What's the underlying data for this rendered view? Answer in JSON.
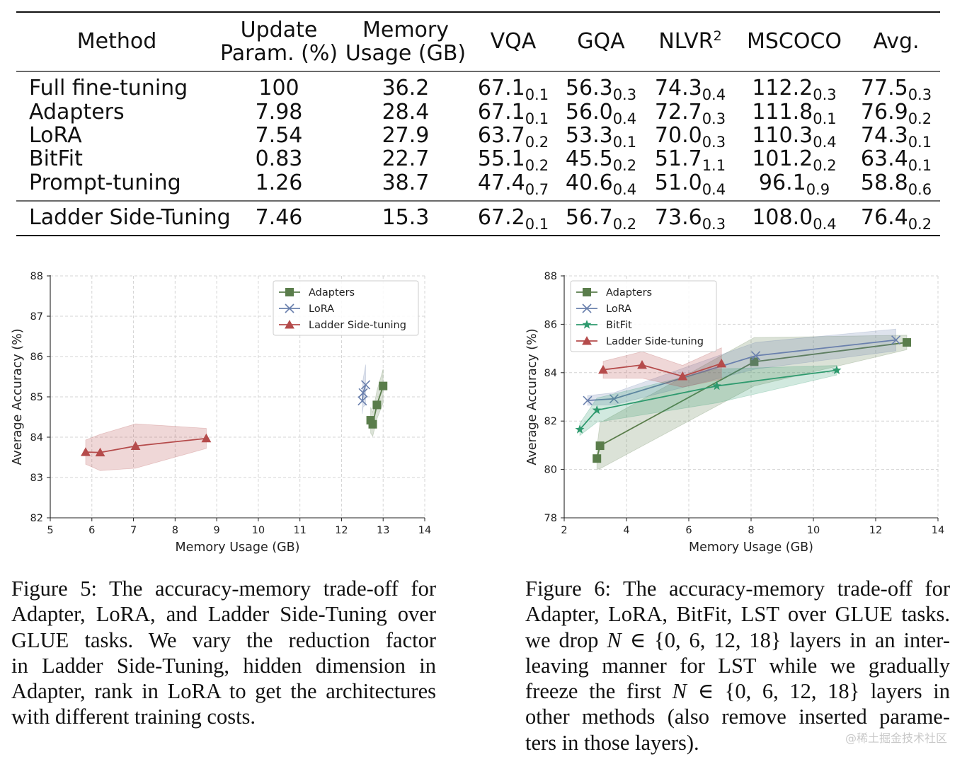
{
  "table": {
    "headers": [
      {
        "lines": [
          "Method"
        ]
      },
      {
        "lines": [
          "Update",
          "Param. (%)"
        ]
      },
      {
        "lines": [
          "Memory",
          "Usage (GB)"
        ]
      },
      {
        "lines": [
          "VQA"
        ]
      },
      {
        "lines": [
          "GQA"
        ]
      },
      {
        "lines": [
          "NLVR"
        ],
        "sup": "2"
      },
      {
        "lines": [
          "MSCOCO"
        ]
      },
      {
        "lines": [
          "Avg."
        ]
      }
    ],
    "rows": [
      {
        "method": "Full fine-tuning",
        "param": "100",
        "memory": "36.2",
        "scores": [
          [
            "67.1",
            "0.1"
          ],
          [
            "56.3",
            "0.3"
          ],
          [
            "74.3",
            "0.4"
          ],
          [
            "112.2",
            "0.3"
          ],
          [
            "77.5",
            "0.3"
          ]
        ]
      },
      {
        "method": "Adapters",
        "param": "7.98",
        "memory": "28.4",
        "scores": [
          [
            "67.1",
            "0.1"
          ],
          [
            "56.0",
            "0.4"
          ],
          [
            "72.7",
            "0.3"
          ],
          [
            "111.8",
            "0.1"
          ],
          [
            "76.9",
            "0.2"
          ]
        ]
      },
      {
        "method": "LoRA",
        "param": "7.54",
        "memory": "27.9",
        "scores": [
          [
            "63.7",
            "0.2"
          ],
          [
            "53.3",
            "0.1"
          ],
          [
            "70.0",
            "0.3"
          ],
          [
            "110.3",
            "0.4"
          ],
          [
            "74.3",
            "0.1"
          ]
        ]
      },
      {
        "method": "BitFit",
        "param": "0.83",
        "memory": "22.7",
        "scores": [
          [
            "55.1",
            "0.2"
          ],
          [
            "45.5",
            "0.2"
          ],
          [
            "51.7",
            "1.1"
          ],
          [
            "101.2",
            "0.2"
          ],
          [
            "63.4",
            "0.1"
          ]
        ]
      },
      {
        "method": "Prompt-tuning",
        "param": "1.26",
        "memory": "38.7",
        "scores": [
          [
            "47.4",
            "0.7"
          ],
          [
            "40.6",
            "0.4"
          ],
          [
            "51.0",
            "0.4"
          ],
          [
            "96.1",
            "0.9"
          ],
          [
            "58.8",
            "0.6"
          ]
        ]
      }
    ],
    "final_row": {
      "method": "Ladder Side-Tuning",
      "param": "7.46",
      "memory": "15.3",
      "scores": [
        [
          "67.2",
          "0.1"
        ],
        [
          "56.7",
          "0.2"
        ],
        [
          "73.6",
          "0.3"
        ],
        [
          "108.0",
          "0.4"
        ],
        [
          "76.4",
          "0.2"
        ]
      ]
    }
  },
  "chart_data": [
    {
      "type": "line",
      "xlabel": "Memory Usage (GB)",
      "ylabel": "Average Accuracy (%)",
      "xlim": [
        5,
        14
      ],
      "ylim": [
        82,
        88
      ],
      "xticks": [
        5,
        6,
        7,
        8,
        9,
        10,
        11,
        12,
        13,
        14
      ],
      "yticks": [
        82,
        83,
        84,
        85,
        86,
        87,
        88
      ],
      "grid": true,
      "legend_position": "top-right",
      "series": [
        {
          "name": "Adapters",
          "color": "#5a7d4b",
          "marker": "square",
          "points": [
            [
              12.7,
              84.42
            ],
            [
              12.75,
              84.32
            ],
            [
              12.85,
              84.8
            ],
            [
              13.0,
              85.27
            ]
          ],
          "band": [
            0.32,
            0.3,
            0.35,
            0.42
          ]
        },
        {
          "name": "LoRA",
          "color": "#6a80ad",
          "marker": "x",
          "points": [
            [
              12.5,
              84.9
            ],
            [
              12.52,
              85.1
            ],
            [
              12.58,
              85.3
            ]
          ],
          "band": [
            0.32,
            0.35,
            0.5
          ]
        },
        {
          "name": "Ladder Side-tuning",
          "color": "#b54b4b",
          "marker": "triangle",
          "points": [
            [
              5.85,
              83.63
            ],
            [
              6.2,
              83.62
            ],
            [
              7.05,
              83.78
            ],
            [
              8.75,
              83.97
            ]
          ],
          "band": [
            0.3,
            0.45,
            0.55,
            0.25
          ]
        }
      ]
    },
    {
      "type": "line",
      "xlabel": "Memory Usage (GB)",
      "ylabel": "Average Accuracy (%)",
      "xlim": [
        2,
        14
      ],
      "ylim": [
        78,
        88
      ],
      "xticks": [
        2,
        4,
        6,
        8,
        10,
        12,
        14
      ],
      "yticks": [
        78,
        80,
        82,
        84,
        86,
        88
      ],
      "grid": true,
      "legend_position": "top-left",
      "series": [
        {
          "name": "Adapters",
          "color": "#5a7d4b",
          "marker": "square",
          "points": [
            [
              3.05,
              80.45
            ],
            [
              3.15,
              80.98
            ],
            [
              8.1,
              84.45
            ],
            [
              13.0,
              85.25
            ]
          ],
          "band": [
            0.45,
            0.95,
            1.0,
            0.3
          ]
        },
        {
          "name": "LoRA",
          "color": "#6a80ad",
          "marker": "x",
          "points": [
            [
              2.75,
              82.85
            ],
            [
              3.6,
              82.92
            ],
            [
              8.15,
              84.7
            ],
            [
              12.65,
              85.35
            ]
          ],
          "band": [
            0.2,
            0.25,
            0.55,
            0.45
          ]
        },
        {
          "name": "BitFit",
          "color": "#2e9a6e",
          "marker": "star",
          "points": [
            [
              2.5,
              81.65
            ],
            [
              3.05,
              82.45
            ],
            [
              6.9,
              83.45
            ],
            [
              10.75,
              84.1
            ]
          ],
          "band": [
            0.25,
            0.5,
            0.7,
            0.2
          ]
        },
        {
          "name": "Ladder Side-tuning",
          "color": "#b54b4b",
          "marker": "triangle",
          "points": [
            [
              3.25,
              84.12
            ],
            [
              4.5,
              84.32
            ],
            [
              5.8,
              83.85
            ],
            [
              7.05,
              84.38
            ]
          ],
          "band": [
            0.35,
            0.55,
            0.45,
            0.65
          ]
        }
      ]
    }
  ],
  "captions": {
    "fig5": [
      "Figure 5: The accuracy-memory trade-off for",
      "Adapter, LoRA, and Ladder Side-Tuning over",
      "GLUE tasks.  We vary the reduction factor",
      "in Ladder Side-Tuning, hidden dimension in",
      "Adapter, rank in LoRA to get the architectures",
      "with different training costs."
    ],
    "fig6": {
      "l1": "Figure 6: The accuracy-memory trade-off for",
      "l2": "Adapter, LoRA, BitFit, LST over GLUE tasks.",
      "l3a": "we drop ",
      "l3var": "N",
      "l3set": " ∈ {0, 6, 12, 18}",
      "l3b": " layers in an inter-",
      "l4": "leaving manner for LST while we gradually",
      "l5a": "freeze the first ",
      "l5var": "N",
      "l5set": " ∈ {0, 6, 12, 18}",
      "l5b": " layers in",
      "l6": "other methods (also remove inserted parame-",
      "l7": "ters in those layers)."
    }
  },
  "watermark": "@稀土掘金技术社区"
}
